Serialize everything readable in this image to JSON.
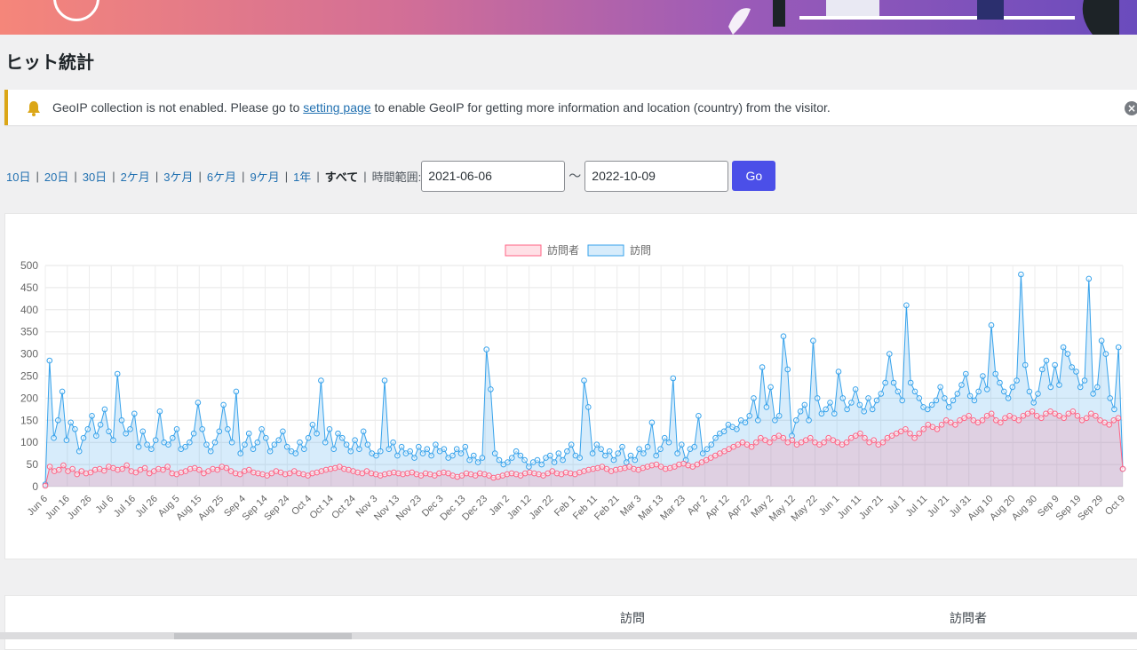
{
  "page": {
    "title": "ヒット統計"
  },
  "colors": {
    "visitors": "#ff6384",
    "visits": "#36a2eb",
    "go_button": "#4b4fe8",
    "notice_border": "#dba617"
  },
  "notice": {
    "icon": "bell-icon",
    "text_before": "GeoIP collection is not enabled. Please go to ",
    "link_text": "setting page",
    "text_after": " to enable GeoIP for getting more information and location (country) from the visitor."
  },
  "range": {
    "links": [
      "10日",
      "20日",
      "30日",
      "2ケ月",
      "3ケ月",
      "6ケ月",
      "9ケ月",
      "1年"
    ],
    "current": "すべて",
    "label": "時間範囲:",
    "from": "2021-06-06",
    "tilde": "〜",
    "to": "2022-10-09",
    "go": "Go"
  },
  "chart_data": {
    "type": "area",
    "title": "",
    "xlabel": "",
    "ylabel": "",
    "ylim": [
      0,
      500
    ],
    "yticks": [
      0,
      50,
      100,
      150,
      200,
      250,
      300,
      350,
      400,
      450,
      500
    ],
    "grid": true,
    "legend_position": "top-center",
    "x_start": "2021-06-06",
    "x_end": "2022-10-09",
    "x_tick_labels": [
      "Jun 6",
      "Jun 16",
      "Jun 26",
      "Jul 6",
      "Jul 16",
      "Jul 26",
      "Aug 5",
      "Aug 15",
      "Aug 25",
      "Sep 4",
      "Sep 14",
      "Sep 24",
      "Oct 4",
      "Oct 14",
      "Oct 24",
      "Nov 3",
      "Nov 13",
      "Nov 23",
      "Dec 3",
      "Dec 13",
      "Dec 23",
      "Jan 2",
      "Jan 12",
      "Jan 22",
      "Feb 1",
      "Feb 11",
      "Feb 21",
      "Mar 3",
      "Mar 13",
      "Mar 23",
      "Apr 2",
      "Apr 12",
      "Apr 22",
      "May 2",
      "May 12",
      "May 22",
      "Jun 1",
      "Jun 11",
      "Jun 21",
      "Jul 1",
      "Jul 11",
      "Jul 21",
      "Jul 31",
      "Aug 10",
      "Aug 20",
      "Aug 30",
      "Sep 9",
      "Sep 19",
      "Sep 29",
      "Oct 9"
    ],
    "series": [
      {
        "name": "訪問者",
        "color": "#ff6384",
        "values": [
          2,
          45,
          35,
          38,
          48,
          35,
          40,
          28,
          35,
          30,
          32,
          38,
          40,
          36,
          45,
          42,
          38,
          40,
          48,
          35,
          32,
          38,
          42,
          30,
          35,
          40,
          38,
          45,
          30,
          28,
          32,
          35,
          40,
          42,
          38,
          30,
          35,
          40,
          38,
          45,
          42,
          35,
          30,
          28,
          35,
          38,
          32,
          30,
          28,
          25,
          30,
          35,
          32,
          28,
          30,
          35,
          30,
          28,
          25,
          30,
          32,
          35,
          38,
          40,
          42,
          45,
          40,
          38,
          35,
          32,
          30,
          35,
          30,
          28,
          25,
          28,
          30,
          32,
          30,
          28,
          30,
          32,
          28,
          25,
          30,
          28,
          25,
          30,
          32,
          30,
          25,
          22,
          25,
          30,
          28,
          25,
          30,
          28,
          25,
          20,
          22,
          25,
          28,
          30,
          28,
          25,
          30,
          32,
          30,
          28,
          25,
          30,
          35,
          30,
          28,
          32,
          30,
          28,
          32,
          35,
          38,
          40,
          42,
          45,
          40,
          35,
          38,
          40,
          42,
          45,
          40,
          38,
          42,
          45,
          48,
          50,
          45,
          40,
          42,
          45,
          50,
          52,
          48,
          45,
          50,
          55,
          60,
          65,
          70,
          75,
          80,
          85,
          90,
          95,
          100,
          95,
          90,
          100,
          110,
          105,
          100,
          110,
          115,
          110,
          100,
          105,
          95,
          100,
          105,
          110,
          100,
          95,
          100,
          110,
          105,
          100,
          95,
          100,
          110,
          115,
          120,
          110,
          100,
          105,
          95,
          100,
          110,
          115,
          120,
          125,
          130,
          120,
          110,
          120,
          130,
          140,
          135,
          130,
          140,
          150,
          145,
          140,
          150,
          155,
          160,
          150,
          145,
          150,
          160,
          165,
          150,
          145,
          155,
          160,
          155,
          150,
          160,
          165,
          170,
          160,
          155,
          165,
          170,
          165,
          160,
          155,
          165,
          170,
          160,
          150,
          155,
          165,
          160,
          150,
          145,
          140,
          150,
          155,
          40
        ]
      },
      {
        "name": "訪問",
        "color": "#36a2eb",
        "values": [
          5,
          285,
          110,
          150,
          215,
          105,
          145,
          130,
          80,
          110,
          130,
          160,
          115,
          140,
          175,
          125,
          105,
          255,
          150,
          120,
          130,
          165,
          90,
          125,
          95,
          85,
          105,
          170,
          100,
          95,
          110,
          130,
          85,
          90,
          100,
          120,
          190,
          130,
          95,
          80,
          100,
          125,
          185,
          130,
          100,
          215,
          75,
          95,
          120,
          85,
          100,
          130,
          110,
          80,
          95,
          105,
          125,
          90,
          80,
          75,
          100,
          85,
          110,
          140,
          120,
          240,
          100,
          130,
          85,
          120,
          110,
          95,
          80,
          105,
          85,
          125,
          95,
          75,
          70,
          80,
          240,
          85,
          100,
          70,
          90,
          75,
          80,
          65,
          90,
          75,
          85,
          70,
          95,
          80,
          85,
          65,
          70,
          85,
          75,
          90,
          60,
          70,
          55,
          65,
          310,
          220,
          75,
          60,
          50,
          55,
          65,
          80,
          70,
          60,
          45,
          55,
          60,
          50,
          65,
          70,
          55,
          75,
          60,
          80,
          95,
          70,
          65,
          240,
          180,
          75,
          95,
          85,
          70,
          80,
          60,
          75,
          90,
          55,
          70,
          60,
          85,
          75,
          90,
          145,
          70,
          85,
          110,
          100,
          245,
          75,
          95,
          60,
          85,
          90,
          160,
          75,
          85,
          95,
          110,
          120,
          125,
          140,
          135,
          130,
          150,
          145,
          160,
          200,
          150,
          270,
          180,
          225,
          150,
          160,
          340,
          265,
          115,
          150,
          170,
          185,
          150,
          330,
          200,
          165,
          175,
          190,
          165,
          260,
          200,
          175,
          190,
          220,
          185,
          170,
          200,
          175,
          195,
          210,
          235,
          300,
          235,
          215,
          195,
          410,
          235,
          215,
          200,
          180,
          175,
          185,
          195,
          225,
          200,
          180,
          195,
          210,
          230,
          255,
          205,
          195,
          215,
          250,
          220,
          365,
          255,
          235,
          215,
          200,
          225,
          240,
          480,
          275,
          215,
          190,
          210,
          265,
          285,
          225,
          275,
          230,
          315,
          300,
          270,
          260,
          225,
          240,
          470,
          210,
          225,
          330,
          300,
          200,
          175,
          315,
          40
        ]
      }
    ]
  },
  "stats": {
    "col_visits": "訪問",
    "col_visitors": "訪問者"
  }
}
